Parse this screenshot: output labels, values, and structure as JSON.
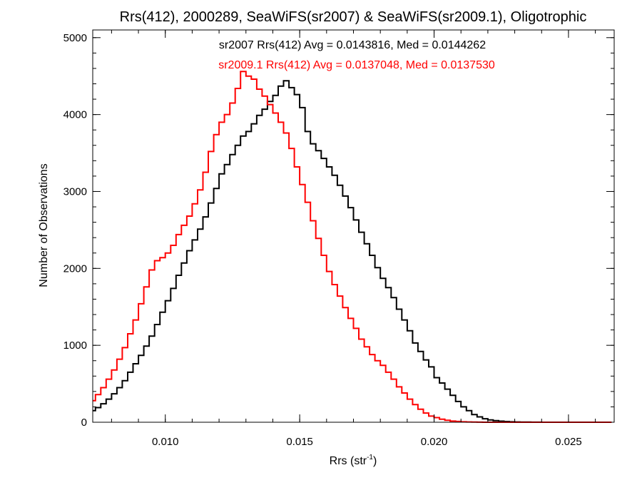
{
  "chart_data": {
    "type": "line",
    "title": "Rrs(412), 2000289, SeaWiFS(sr2007) & SeaWiFS(sr2009.1), Oligotrophic",
    "xlabel": {
      "main": "Rrs (str",
      "sup": "-1",
      "tail": ")"
    },
    "ylabel": "Number of Observations",
    "xlim": [
      0.0073,
      0.0267
    ],
    "ylim": [
      0,
      5100
    ],
    "x_ticks": [
      0.01,
      0.015,
      0.02,
      0.025
    ],
    "x_tick_labels": [
      "0.010",
      "0.015",
      "0.020",
      "0.025"
    ],
    "y_ticks": [
      0,
      1000,
      2000,
      3000,
      4000,
      5000
    ],
    "y_tick_labels": [
      "0",
      "1000",
      "2000",
      "3000",
      "4000",
      "5000"
    ],
    "grid": false,
    "annotations": [
      {
        "text": "sr2007 Rrs(412) Avg = 0.0143816, Med = 0.0144262",
        "color": "#000000"
      },
      {
        "text": "sr2009.1 Rrs(412) Avg = 0.0137048, Med = 0.0137530",
        "color": "#ff0000"
      }
    ],
    "series": [
      {
        "color": "#000000",
        "x": [
          0.0073,
          0.0075,
          0.0077,
          0.0079,
          0.0081,
          0.0083,
          0.0085,
          0.0087,
          0.0089,
          0.0091,
          0.0093,
          0.0095,
          0.0097,
          0.0099,
          0.0101,
          0.0103,
          0.0105,
          0.0107,
          0.0109,
          0.0111,
          0.0113,
          0.0115,
          0.0117,
          0.0119,
          0.0121,
          0.0123,
          0.0125,
          0.0127,
          0.0129,
          0.0131,
          0.0133,
          0.0135,
          0.0137,
          0.0139,
          0.0141,
          0.0143,
          0.0145,
          0.0147,
          0.0149,
          0.0151,
          0.0153,
          0.0155,
          0.0157,
          0.0159,
          0.0161,
          0.0163,
          0.0165,
          0.0167,
          0.0169,
          0.0171,
          0.0173,
          0.0175,
          0.0177,
          0.0179,
          0.0181,
          0.0183,
          0.0185,
          0.0187,
          0.0189,
          0.0191,
          0.0193,
          0.0195,
          0.0197,
          0.0199,
          0.0201,
          0.0203,
          0.0205,
          0.0207,
          0.0209,
          0.0211,
          0.0213,
          0.0215,
          0.0217,
          0.0219,
          0.0221,
          0.0223,
          0.0225,
          0.0227,
          0.0229,
          0.0231,
          0.0233,
          0.0235,
          0.0237,
          0.0239,
          0.0241,
          0.0243,
          0.0245,
          0.0247,
          0.0249,
          0.0251,
          0.0253,
          0.0255,
          0.0257,
          0.0259,
          0.0261,
          0.0263,
          0.0265
        ],
        "values": [
          150,
          190,
          240,
          300,
          370,
          450,
          540,
          650,
          760,
          870,
          990,
          1120,
          1270,
          1430,
          1580,
          1740,
          1910,
          2070,
          2230,
          2370,
          2510,
          2670,
          2850,
          3040,
          3230,
          3350,
          3480,
          3600,
          3720,
          3780,
          3880,
          3990,
          4070,
          4170,
          4250,
          4370,
          4440,
          4350,
          4260,
          4090,
          3780,
          3620,
          3530,
          3430,
          3320,
          3210,
          3080,
          2940,
          2790,
          2630,
          2470,
          2320,
          2170,
          2010,
          1870,
          1750,
          1620,
          1470,
          1330,
          1190,
          1030,
          920,
          810,
          720,
          580,
          510,
          430,
          350,
          270,
          200,
          150,
          100,
          70,
          45,
          30,
          20,
          14,
          9,
          6,
          4,
          3,
          2,
          1,
          1,
          0,
          0,
          0,
          0,
          0,
          0,
          0,
          0,
          0,
          0,
          0,
          0,
          0
        ]
      },
      {
        "color": "#ff0000",
        "x": [
          0.0073,
          0.0075,
          0.0077,
          0.0079,
          0.0081,
          0.0083,
          0.0085,
          0.0087,
          0.0089,
          0.0091,
          0.0093,
          0.0095,
          0.0097,
          0.0099,
          0.0101,
          0.0103,
          0.0105,
          0.0107,
          0.0109,
          0.0111,
          0.0113,
          0.0115,
          0.0117,
          0.0119,
          0.0121,
          0.0123,
          0.0125,
          0.0127,
          0.0129,
          0.0131,
          0.0133,
          0.0135,
          0.0137,
          0.0139,
          0.0141,
          0.0143,
          0.0145,
          0.0147,
          0.0149,
          0.0151,
          0.0153,
          0.0155,
          0.0157,
          0.0159,
          0.0161,
          0.0163,
          0.0165,
          0.0167,
          0.0169,
          0.0171,
          0.0173,
          0.0175,
          0.0177,
          0.0179,
          0.0181,
          0.0183,
          0.0185,
          0.0187,
          0.0189,
          0.0191,
          0.0193,
          0.0195,
          0.0197,
          0.0199,
          0.0201,
          0.0203,
          0.0205,
          0.0207,
          0.0209,
          0.0211,
          0.0213,
          0.0215,
          0.0217,
          0.0219,
          0.0221,
          0.0223,
          0.0225,
          0.0227,
          0.0229,
          0.0231,
          0.0233,
          0.0235,
          0.0237,
          0.0239,
          0.0241,
          0.0243,
          0.0245,
          0.0247,
          0.0249,
          0.0251,
          0.0253,
          0.0255,
          0.0257,
          0.0259,
          0.0261,
          0.0263,
          0.0265
        ],
        "values": [
          280,
          360,
          450,
          560,
          680,
          820,
          970,
          1150,
          1330,
          1540,
          1760,
          1980,
          2100,
          2140,
          2200,
          2300,
          2440,
          2560,
          2680,
          2840,
          3020,
          3250,
          3520,
          3740,
          3900,
          4000,
          4150,
          4340,
          4560,
          4500,
          4460,
          4330,
          4240,
          4130,
          4020,
          3900,
          3760,
          3560,
          3320,
          3090,
          2860,
          2620,
          2390,
          2170,
          1960,
          1790,
          1640,
          1490,
          1350,
          1220,
          1080,
          980,
          880,
          800,
          740,
          650,
          560,
          460,
          380,
          300,
          230,
          170,
          120,
          80,
          60,
          40,
          25,
          15,
          10,
          6,
          4,
          2,
          1,
          0,
          0,
          0,
          0,
          0,
          0,
          0,
          0,
          0,
          0,
          0,
          0,
          0,
          0,
          0,
          0,
          0,
          0,
          0,
          0,
          0,
          0,
          0,
          0
        ]
      }
    ]
  }
}
